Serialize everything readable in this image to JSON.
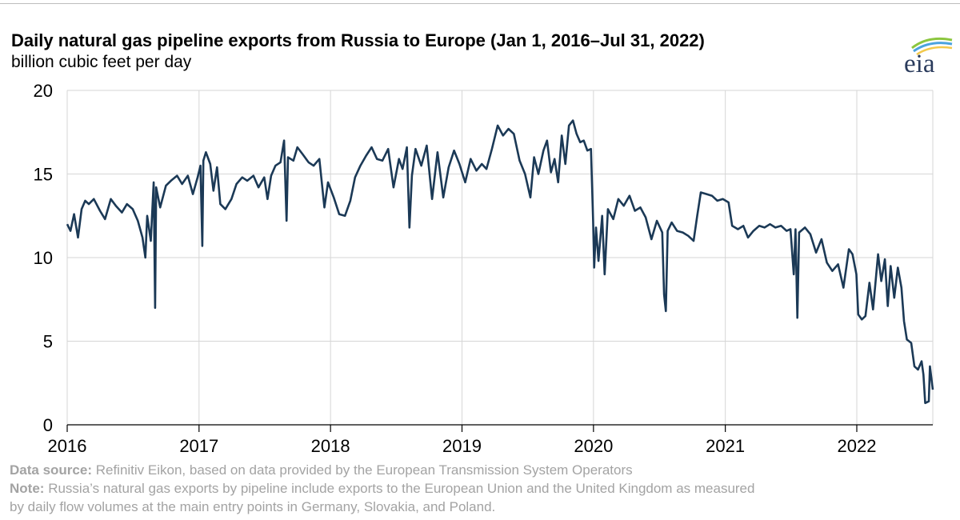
{
  "header": {
    "title": "Daily natural gas pipeline exports from Russia to Europe (Jan 1, 2016–Jul 31, 2022)",
    "subtitle": "billion cubic feet per day",
    "logo_text": "eia"
  },
  "footer": {
    "source_label": "Data source:",
    "source_text": "Refinitiv Eikon, based on data provided by the European Transmission System Operators",
    "note_label": "Note:",
    "note_line1": "Russia’s natural gas exports by pipeline include exports to the European Union and the United Kingdom as measured",
    "note_line2": "by daily flow volumes at the main entry points in Germany, Slovakia, and Poland."
  },
  "colors": {
    "line": "#1b3956",
    "grid": "#d6d6d6",
    "axis": "#000000",
    "logo_arc_green": "#8cc63f",
    "logo_arc_blue": "#4aa3df",
    "logo_arc_yellow": "#f2c94c"
  },
  "chart_data": {
    "type": "line",
    "title": "Daily natural gas pipeline exports from Russia to Europe (Jan 1, 2016–Jul 31, 2022)",
    "ylabel": "billion cubic feet per day",
    "xlabel": "",
    "xlim": [
      "2016-01-01",
      "2022-07-31"
    ],
    "ylim": [
      0,
      20
    ],
    "y_ticks": [
      "0",
      "5",
      "10",
      "15",
      "20"
    ],
    "x_ticks": [
      "2016",
      "2017",
      "2018",
      "2019",
      "2020",
      "2021",
      "2022"
    ],
    "grid": true,
    "legend": "none",
    "series": [
      {
        "values": [
          [
            "2016-01-01",
            12.0
          ],
          [
            "2016-01-10",
            11.6
          ],
          [
            "2016-01-20",
            12.6
          ],
          [
            "2016-01-31",
            11.2
          ],
          [
            "2016-02-10",
            12.9
          ],
          [
            "2016-02-20",
            13.4
          ],
          [
            "2016-03-01",
            13.2
          ],
          [
            "2016-03-15",
            13.5
          ],
          [
            "2016-04-01",
            12.8
          ],
          [
            "2016-04-15",
            12.3
          ],
          [
            "2016-05-01",
            13.5
          ],
          [
            "2016-05-15",
            13.1
          ],
          [
            "2016-06-01",
            12.7
          ],
          [
            "2016-06-15",
            13.2
          ],
          [
            "2016-07-01",
            12.9
          ],
          [
            "2016-07-15",
            12.2
          ],
          [
            "2016-07-28",
            11.2
          ],
          [
            "2016-08-05",
            10.0
          ],
          [
            "2016-08-10",
            12.5
          ],
          [
            "2016-08-20",
            11.0
          ],
          [
            "2016-08-28",
            14.5
          ],
          [
            "2016-09-01",
            7.0
          ],
          [
            "2016-09-04",
            14.2
          ],
          [
            "2016-09-15",
            13.0
          ],
          [
            "2016-10-01",
            14.3
          ],
          [
            "2016-10-15",
            14.6
          ],
          [
            "2016-11-01",
            14.9
          ],
          [
            "2016-11-15",
            14.4
          ],
          [
            "2016-12-01",
            14.9
          ],
          [
            "2016-12-15",
            13.8
          ],
          [
            "2016-12-28",
            14.8
          ],
          [
            "2017-01-05",
            15.5
          ],
          [
            "2017-01-10",
            10.7
          ],
          [
            "2017-01-13",
            15.8
          ],
          [
            "2017-01-20",
            16.3
          ],
          [
            "2017-02-01",
            15.6
          ],
          [
            "2017-02-10",
            14.0
          ],
          [
            "2017-02-20",
            15.4
          ],
          [
            "2017-03-01",
            13.2
          ],
          [
            "2017-03-15",
            12.9
          ],
          [
            "2017-04-01",
            13.5
          ],
          [
            "2017-04-15",
            14.4
          ],
          [
            "2017-05-01",
            14.8
          ],
          [
            "2017-05-15",
            14.6
          ],
          [
            "2017-06-01",
            14.9
          ],
          [
            "2017-06-15",
            14.2
          ],
          [
            "2017-07-01",
            14.8
          ],
          [
            "2017-07-10",
            13.5
          ],
          [
            "2017-07-20",
            14.9
          ],
          [
            "2017-08-01",
            15.5
          ],
          [
            "2017-08-15",
            15.7
          ],
          [
            "2017-08-25",
            17.0
          ],
          [
            "2017-09-01",
            12.2
          ],
          [
            "2017-09-05",
            16.0
          ],
          [
            "2017-09-20",
            15.8
          ],
          [
            "2017-10-01",
            16.6
          ],
          [
            "2017-10-15",
            16.2
          ],
          [
            "2017-11-01",
            15.7
          ],
          [
            "2017-11-15",
            15.5
          ],
          [
            "2017-12-01",
            15.9
          ],
          [
            "2017-12-15",
            13.0
          ],
          [
            "2017-12-25",
            14.5
          ],
          [
            "2018-01-10",
            13.6
          ],
          [
            "2018-01-25",
            12.6
          ],
          [
            "2018-02-10",
            12.5
          ],
          [
            "2018-02-25",
            13.4
          ],
          [
            "2018-03-10",
            14.8
          ],
          [
            "2018-03-25",
            15.5
          ],
          [
            "2018-04-10",
            16.1
          ],
          [
            "2018-04-25",
            16.6
          ],
          [
            "2018-05-10",
            15.9
          ],
          [
            "2018-05-25",
            15.8
          ],
          [
            "2018-06-10",
            16.5
          ],
          [
            "2018-06-25",
            14.2
          ],
          [
            "2018-07-10",
            15.9
          ],
          [
            "2018-07-20",
            15.3
          ],
          [
            "2018-08-01",
            16.6
          ],
          [
            "2018-08-08",
            11.8
          ],
          [
            "2018-08-15",
            14.9
          ],
          [
            "2018-08-25",
            16.5
          ],
          [
            "2018-09-10",
            15.5
          ],
          [
            "2018-09-25",
            16.7
          ],
          [
            "2018-10-10",
            13.5
          ],
          [
            "2018-10-25",
            16.3
          ],
          [
            "2018-11-10",
            13.6
          ],
          [
            "2018-11-25",
            15.4
          ],
          [
            "2018-12-10",
            16.4
          ],
          [
            "2018-12-25",
            15.6
          ],
          [
            "2019-01-10",
            14.5
          ],
          [
            "2019-01-25",
            15.9
          ],
          [
            "2019-02-10",
            15.2
          ],
          [
            "2019-02-25",
            15.6
          ],
          [
            "2019-03-10",
            15.3
          ],
          [
            "2019-03-25",
            16.5
          ],
          [
            "2019-04-10",
            17.9
          ],
          [
            "2019-04-25",
            17.3
          ],
          [
            "2019-05-10",
            17.7
          ],
          [
            "2019-05-25",
            17.4
          ],
          [
            "2019-06-10",
            15.8
          ],
          [
            "2019-06-25",
            15.0
          ],
          [
            "2019-07-10",
            13.6
          ],
          [
            "2019-07-20",
            16.0
          ],
          [
            "2019-08-01",
            15.0
          ],
          [
            "2019-08-15",
            16.4
          ],
          [
            "2019-08-25",
            17.0
          ],
          [
            "2019-09-05",
            15.1
          ],
          [
            "2019-09-15",
            15.9
          ],
          [
            "2019-09-25",
            14.5
          ],
          [
            "2019-10-05",
            17.3
          ],
          [
            "2019-10-15",
            15.6
          ],
          [
            "2019-10-25",
            17.9
          ],
          [
            "2019-11-05",
            18.2
          ],
          [
            "2019-11-15",
            17.4
          ],
          [
            "2019-11-25",
            16.9
          ],
          [
            "2019-12-05",
            17.0
          ],
          [
            "2019-12-15",
            16.4
          ],
          [
            "2019-12-25",
            16.5
          ],
          [
            "2019-12-31",
            12.2
          ],
          [
            "2020-01-03",
            9.4
          ],
          [
            "2020-01-08",
            11.8
          ],
          [
            "2020-01-15",
            9.8
          ],
          [
            "2020-01-25",
            12.5
          ],
          [
            "2020-02-01",
            9.0
          ],
          [
            "2020-02-10",
            12.9
          ],
          [
            "2020-02-25",
            12.3
          ],
          [
            "2020-03-10",
            13.5
          ],
          [
            "2020-03-25",
            13.1
          ],
          [
            "2020-04-10",
            13.7
          ],
          [
            "2020-04-25",
            12.8
          ],
          [
            "2020-05-10",
            13.0
          ],
          [
            "2020-05-25",
            12.4
          ],
          [
            "2020-06-10",
            11.1
          ],
          [
            "2020-06-25",
            12.2
          ],
          [
            "2020-07-10",
            11.5
          ],
          [
            "2020-07-15",
            7.8
          ],
          [
            "2020-07-20",
            6.8
          ],
          [
            "2020-07-25",
            11.6
          ],
          [
            "2020-08-05",
            12.1
          ],
          [
            "2020-08-20",
            11.6
          ],
          [
            "2020-09-05",
            11.5
          ],
          [
            "2020-09-20",
            11.3
          ],
          [
            "2020-10-05",
            11.0
          ],
          [
            "2020-10-15",
            12.5
          ],
          [
            "2020-10-25",
            13.9
          ],
          [
            "2020-11-10",
            13.8
          ],
          [
            "2020-11-25",
            13.7
          ],
          [
            "2020-12-10",
            13.4
          ],
          [
            "2020-12-25",
            13.5
          ],
          [
            "2021-01-10",
            13.3
          ],
          [
            "2021-01-20",
            11.9
          ],
          [
            "2021-02-05",
            11.7
          ],
          [
            "2021-02-20",
            11.9
          ],
          [
            "2021-03-05",
            11.2
          ],
          [
            "2021-03-20",
            11.6
          ],
          [
            "2021-04-05",
            11.9
          ],
          [
            "2021-04-20",
            11.8
          ],
          [
            "2021-05-05",
            12.0
          ],
          [
            "2021-05-20",
            11.8
          ],
          [
            "2021-06-05",
            11.9
          ],
          [
            "2021-06-20",
            11.6
          ],
          [
            "2021-07-01",
            11.7
          ],
          [
            "2021-07-10",
            9.0
          ],
          [
            "2021-07-15",
            11.7
          ],
          [
            "2021-07-20",
            6.4
          ],
          [
            "2021-07-25",
            11.5
          ],
          [
            "2021-08-10",
            11.8
          ],
          [
            "2021-08-25",
            11.4
          ],
          [
            "2021-09-10",
            10.3
          ],
          [
            "2021-09-25",
            11.1
          ],
          [
            "2021-10-10",
            9.7
          ],
          [
            "2021-10-25",
            9.2
          ],
          [
            "2021-11-10",
            9.6
          ],
          [
            "2021-11-25",
            8.2
          ],
          [
            "2021-12-10",
            10.5
          ],
          [
            "2021-12-20",
            10.2
          ],
          [
            "2021-12-31",
            9.0
          ],
          [
            "2022-01-05",
            6.6
          ],
          [
            "2022-01-15",
            6.3
          ],
          [
            "2022-01-25",
            6.5
          ],
          [
            "2022-02-05",
            8.5
          ],
          [
            "2022-02-15",
            6.9
          ],
          [
            "2022-03-01",
            10.2
          ],
          [
            "2022-03-10",
            8.6
          ],
          [
            "2022-03-20",
            9.9
          ],
          [
            "2022-03-28",
            7.1
          ],
          [
            "2022-04-05",
            9.5
          ],
          [
            "2022-04-15",
            7.6
          ],
          [
            "2022-04-25",
            9.4
          ],
          [
            "2022-05-05",
            8.2
          ],
          [
            "2022-05-12",
            6.2
          ],
          [
            "2022-05-20",
            5.1
          ],
          [
            "2022-06-01",
            4.9
          ],
          [
            "2022-06-10",
            3.5
          ],
          [
            "2022-06-20",
            3.3
          ],
          [
            "2022-06-30",
            3.8
          ],
          [
            "2022-07-05",
            3.0
          ],
          [
            "2022-07-10",
            1.3
          ],
          [
            "2022-07-20",
            1.4
          ],
          [
            "2022-07-23",
            3.5
          ],
          [
            "2022-07-31",
            2.1
          ]
        ]
      }
    ]
  }
}
